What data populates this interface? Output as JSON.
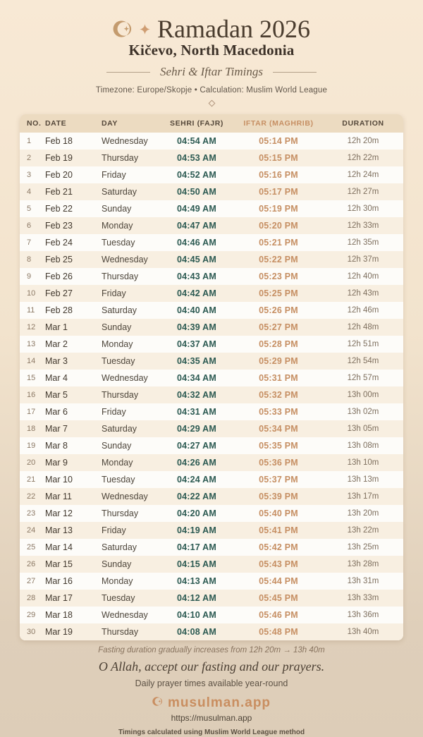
{
  "header": {
    "title": "Ramadan 2026",
    "location": "Kičevo, North Macedonia",
    "tagline": "Sehri & Iftar Timings",
    "meta": "Timezone: Europe/Skopje • Calculation: Muslim World League"
  },
  "table": {
    "columns": [
      "NO.",
      "DATE",
      "DAY",
      "SEHRI (FAJR)",
      "IFTAR (MAGHRIB)",
      "DURATION"
    ],
    "rows": [
      [
        "1",
        "Feb 18",
        "Wednesday",
        "04:54 AM",
        "05:14 PM",
        "12h 20m"
      ],
      [
        "2",
        "Feb 19",
        "Thursday",
        "04:53 AM",
        "05:15 PM",
        "12h 22m"
      ],
      [
        "3",
        "Feb 20",
        "Friday",
        "04:52 AM",
        "05:16 PM",
        "12h 24m"
      ],
      [
        "4",
        "Feb 21",
        "Saturday",
        "04:50 AM",
        "05:17 PM",
        "12h 27m"
      ],
      [
        "5",
        "Feb 22",
        "Sunday",
        "04:49 AM",
        "05:19 PM",
        "12h 30m"
      ],
      [
        "6",
        "Feb 23",
        "Monday",
        "04:47 AM",
        "05:20 PM",
        "12h 33m"
      ],
      [
        "7",
        "Feb 24",
        "Tuesday",
        "04:46 AM",
        "05:21 PM",
        "12h 35m"
      ],
      [
        "8",
        "Feb 25",
        "Wednesday",
        "04:45 AM",
        "05:22 PM",
        "12h 37m"
      ],
      [
        "9",
        "Feb 26",
        "Thursday",
        "04:43 AM",
        "05:23 PM",
        "12h 40m"
      ],
      [
        "10",
        "Feb 27",
        "Friday",
        "04:42 AM",
        "05:25 PM",
        "12h 43m"
      ],
      [
        "11",
        "Feb 28",
        "Saturday",
        "04:40 AM",
        "05:26 PM",
        "12h 46m"
      ],
      [
        "12",
        "Mar 1",
        "Sunday",
        "04:39 AM",
        "05:27 PM",
        "12h 48m"
      ],
      [
        "13",
        "Mar 2",
        "Monday",
        "04:37 AM",
        "05:28 PM",
        "12h 51m"
      ],
      [
        "14",
        "Mar 3",
        "Tuesday",
        "04:35 AM",
        "05:29 PM",
        "12h 54m"
      ],
      [
        "15",
        "Mar 4",
        "Wednesday",
        "04:34 AM",
        "05:31 PM",
        "12h 57m"
      ],
      [
        "16",
        "Mar 5",
        "Thursday",
        "04:32 AM",
        "05:32 PM",
        "13h 00m"
      ],
      [
        "17",
        "Mar 6",
        "Friday",
        "04:31 AM",
        "05:33 PM",
        "13h 02m"
      ],
      [
        "18",
        "Mar 7",
        "Saturday",
        "04:29 AM",
        "05:34 PM",
        "13h 05m"
      ],
      [
        "19",
        "Mar 8",
        "Sunday",
        "04:27 AM",
        "05:35 PM",
        "13h 08m"
      ],
      [
        "20",
        "Mar 9",
        "Monday",
        "04:26 AM",
        "05:36 PM",
        "13h 10m"
      ],
      [
        "21",
        "Mar 10",
        "Tuesday",
        "04:24 AM",
        "05:37 PM",
        "13h 13m"
      ],
      [
        "22",
        "Mar 11",
        "Wednesday",
        "04:22 AM",
        "05:39 PM",
        "13h 17m"
      ],
      [
        "23",
        "Mar 12",
        "Thursday",
        "04:20 AM",
        "05:40 PM",
        "13h 20m"
      ],
      [
        "24",
        "Mar 13",
        "Friday",
        "04:19 AM",
        "05:41 PM",
        "13h 22m"
      ],
      [
        "25",
        "Mar 14",
        "Saturday",
        "04:17 AM",
        "05:42 PM",
        "13h 25m"
      ],
      [
        "26",
        "Mar 15",
        "Sunday",
        "04:15 AM",
        "05:43 PM",
        "13h 28m"
      ],
      [
        "27",
        "Mar 16",
        "Monday",
        "04:13 AM",
        "05:44 PM",
        "13h 31m"
      ],
      [
        "28",
        "Mar 17",
        "Tuesday",
        "04:12 AM",
        "05:45 PM",
        "13h 33m"
      ],
      [
        "29",
        "Mar 18",
        "Wednesday",
        "04:10 AM",
        "05:46 PM",
        "13h 36m"
      ],
      [
        "30",
        "Mar 19",
        "Thursday",
        "04:08 AM",
        "05:48 PM",
        "13h 40m"
      ]
    ]
  },
  "footer": {
    "note": "Fasting duration gradually increases from 12h 20m → 13h 40m",
    "quote": "O Allah, accept our fasting and our prayers.",
    "availability": "Daily prayer times available year-round",
    "brand": "musulman.app",
    "url": "https://musulman.app",
    "method": "Timings calculated using Muslim World League method"
  },
  "colors": {
    "sehri_color": "#2c5a52",
    "iftar_color": "#c68f63",
    "brand_color": "#c98e60",
    "title_color": "#4a3c2e",
    "header_row_bg": "#ecdbc1",
    "stripe_bg": "#f8efe1"
  }
}
